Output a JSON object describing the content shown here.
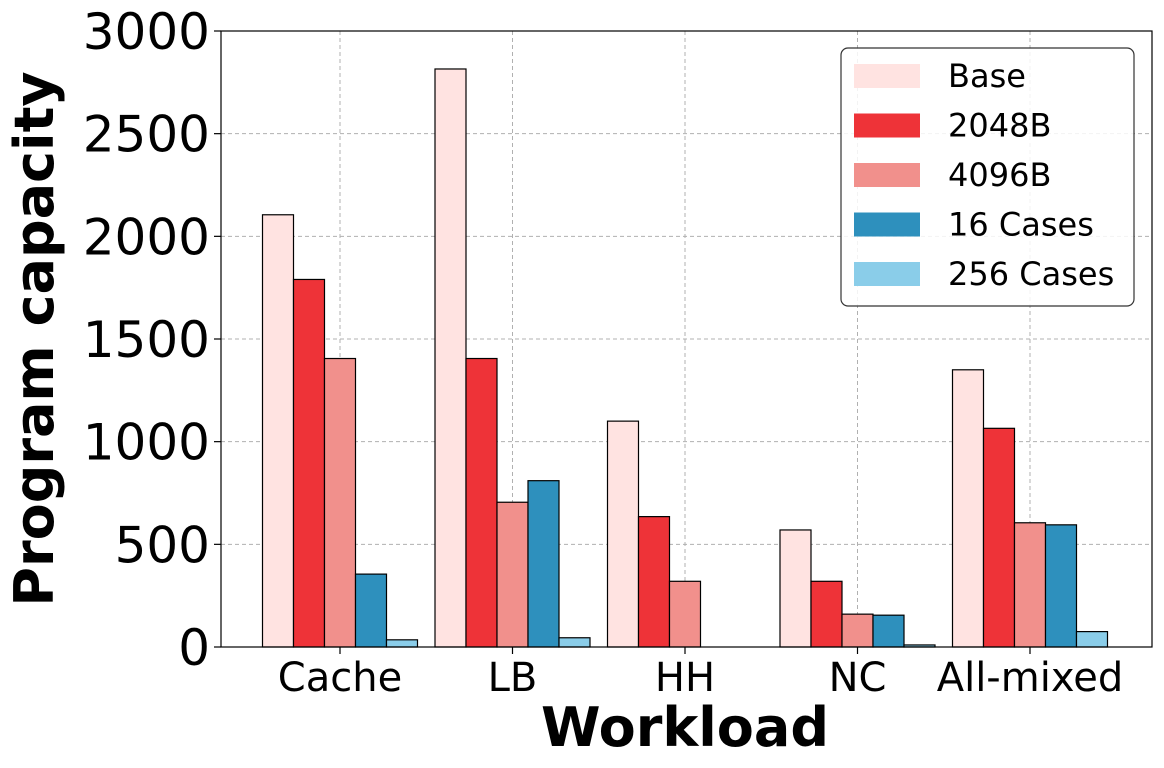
{
  "chart_data": {
    "type": "bar",
    "categories": [
      "Cache",
      "LB",
      "HH",
      "NC",
      "All-mixed"
    ],
    "series": [
      {
        "name": "Base",
        "color": "#ffe3e1",
        "values": [
          2105,
          2815,
          1100,
          570,
          1350
        ]
      },
      {
        "name": "2048B",
        "color": "#ee3338",
        "values": [
          1790,
          1405,
          635,
          320,
          1065
        ]
      },
      {
        "name": "4096B",
        "color": "#f1908c",
        "values": [
          1405,
          705,
          320,
          160,
          605
        ]
      },
      {
        "name": "16 Cases",
        "color": "#2e90bd",
        "values": [
          355,
          810,
          0,
          155,
          595
        ]
      },
      {
        "name": "256 Cases",
        "color": "#8acde9",
        "values": [
          35,
          45,
          0,
          10,
          75
        ]
      }
    ],
    "xlabel": "Workload",
    "ylabel": "Program capacity",
    "ylim": [
      0,
      3000
    ],
    "yticks": [
      "0",
      "500",
      "1000",
      "1500",
      "2000",
      "2500",
      "3000"
    ],
    "grid": true,
    "legend_position": "top-right"
  }
}
